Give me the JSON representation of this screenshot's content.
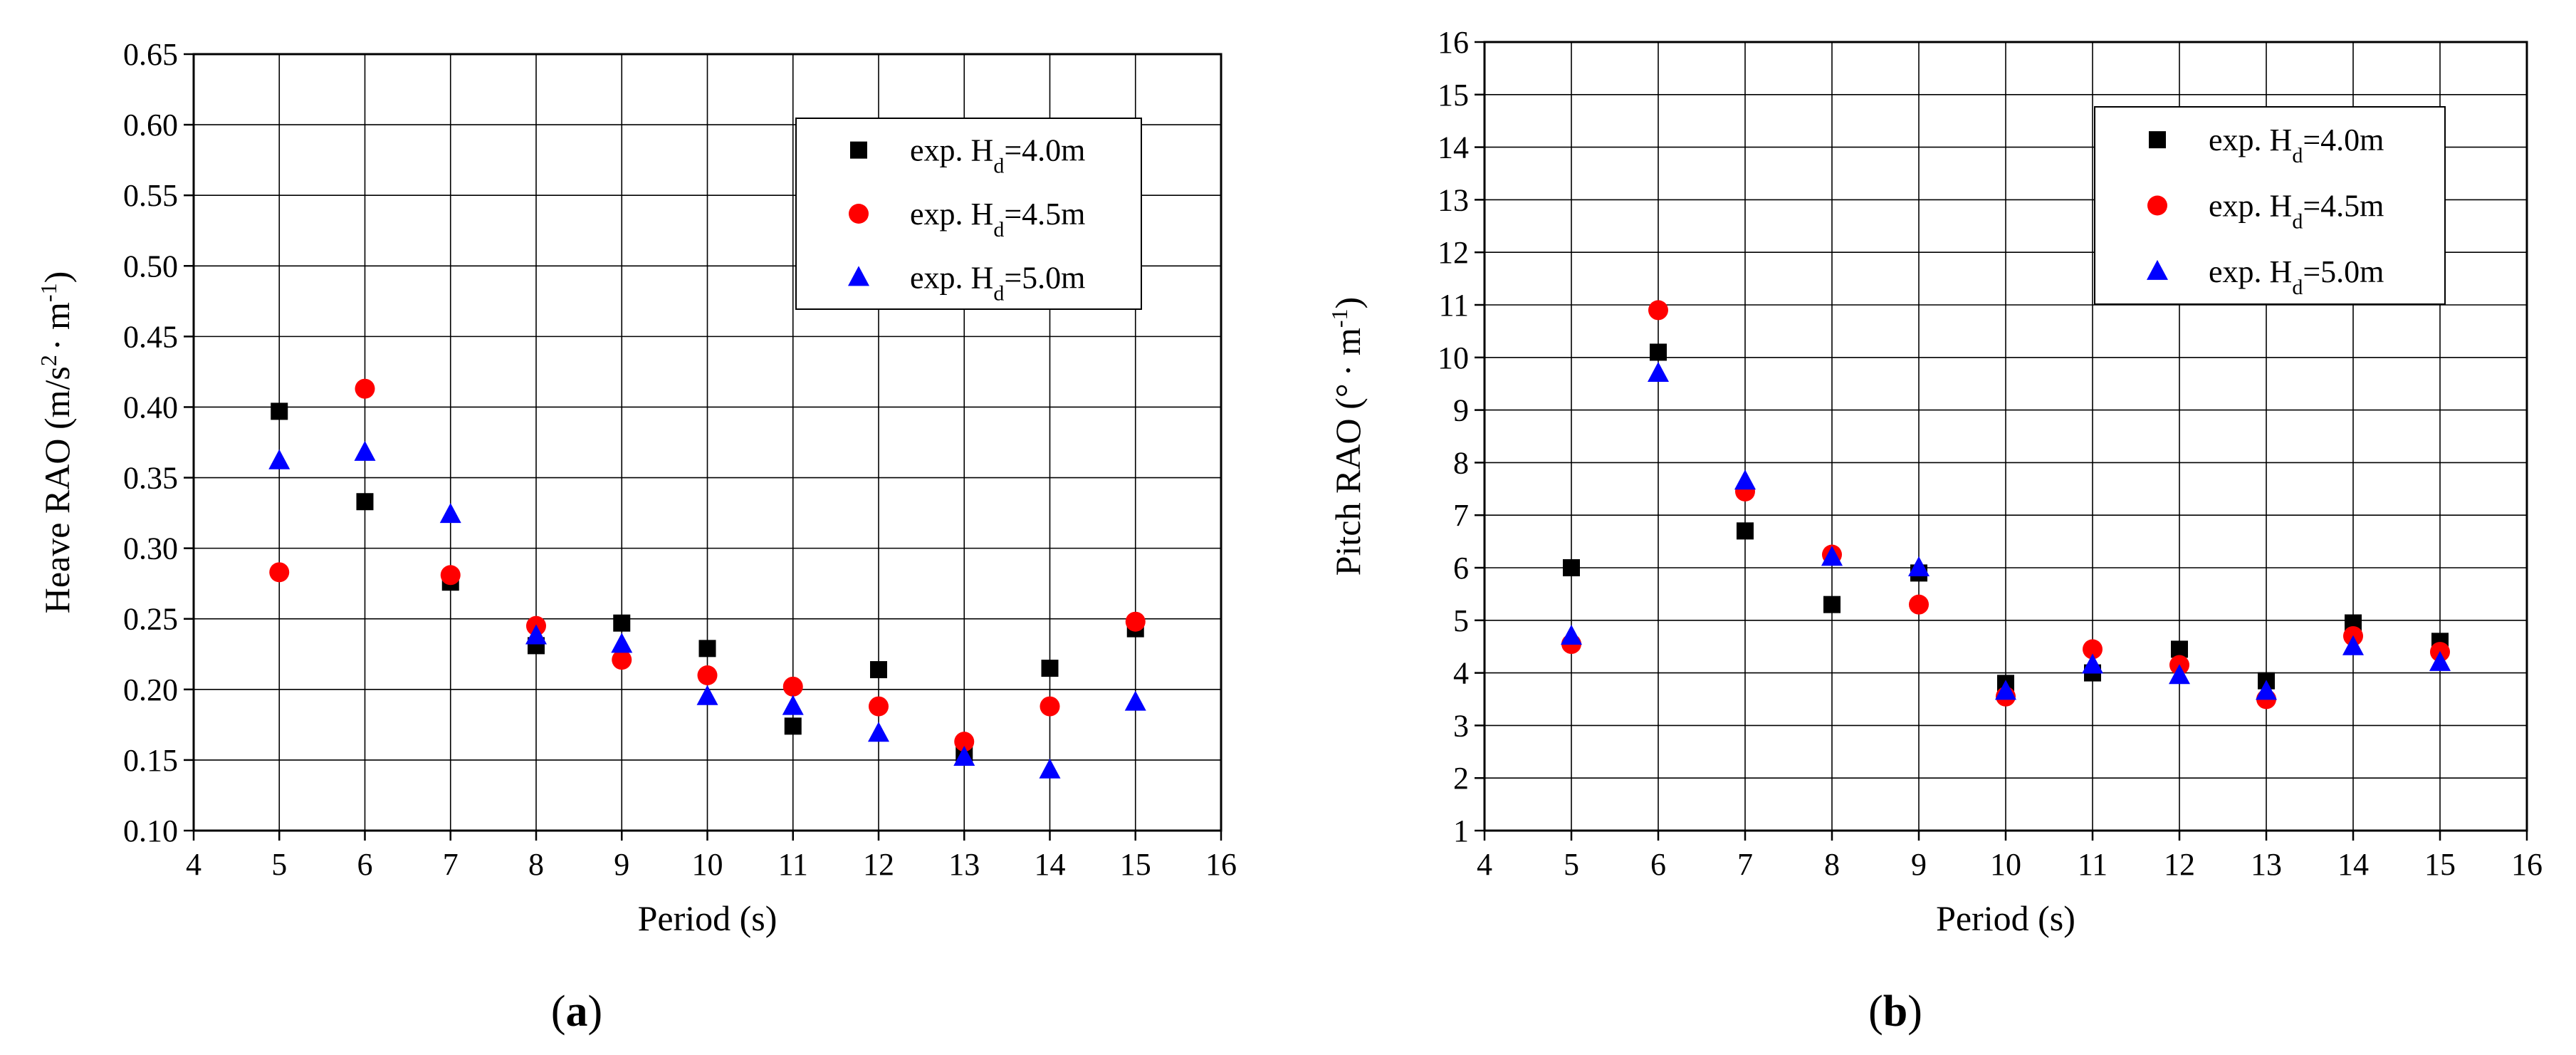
{
  "panels": [
    {
      "label_open": "(",
      "label_letter": "a",
      "label_close": ")"
    },
    {
      "label_open": "(",
      "label_letter": "b",
      "label_close": ")"
    }
  ],
  "chart_data": [
    {
      "type": "scatter",
      "xlabel": "Period (s)",
      "ylabel": {
        "main": "Heave RAO (m/s",
        "sup1": "2",
        "mid": "· m",
        "sup2": "-1",
        "end": ")"
      },
      "xlim": [
        4,
        16
      ],
      "ylim": [
        0.1,
        0.65
      ],
      "x_ticks": [
        "4",
        "5",
        "6",
        "7",
        "8",
        "9",
        "10",
        "11",
        "12",
        "13",
        "14",
        "15",
        "16"
      ],
      "y_ticks": [
        "0.10",
        "0.15",
        "0.20",
        "0.25",
        "0.30",
        "0.35",
        "0.40",
        "0.45",
        "0.50",
        "0.55",
        "0.60",
        "0.65"
      ],
      "grid": true,
      "legend_position": "top-right",
      "x": [
        5,
        6,
        7,
        8,
        9,
        10,
        11,
        12,
        13,
        14,
        15
      ],
      "series": [
        {
          "name": {
            "pre": "exp. H",
            "sub": "d",
            "post": "=4.0m"
          },
          "marker": "square",
          "color": "#000000",
          "values": [
            0.397,
            0.333,
            0.276,
            0.231,
            0.247,
            0.229,
            0.174,
            0.214,
            0.155,
            0.215,
            0.243
          ]
        },
        {
          "name": {
            "pre": "exp. H",
            "sub": "d",
            "post": "=4.5m"
          },
          "marker": "circle",
          "color": "#ff0000",
          "values": [
            0.283,
            0.413,
            0.281,
            0.245,
            0.221,
            0.21,
            0.202,
            0.188,
            0.163,
            0.188,
            0.248
          ]
        },
        {
          "name": {
            "pre": "exp. H",
            "sub": "d",
            "post": "=5.0m"
          },
          "marker": "triangle",
          "color": "#0000ff",
          "values": [
            0.362,
            0.368,
            0.324,
            0.238,
            0.232,
            0.195,
            0.188,
            0.169,
            0.152,
            0.143,
            0.191
          ]
        }
      ]
    },
    {
      "type": "scatter",
      "xlabel": "Period (s)",
      "ylabel": {
        "main": "Pitch RAO (°",
        "mid": "· m",
        "sup2": "-1",
        "end": ")"
      },
      "xlim": [
        4,
        16
      ],
      "ylim": [
        1,
        16
      ],
      "x_ticks": [
        "4",
        "5",
        "6",
        "7",
        "8",
        "9",
        "10",
        "11",
        "12",
        "13",
        "14",
        "15",
        "16"
      ],
      "y_ticks": [
        "1",
        "2",
        "3",
        "4",
        "5",
        "6",
        "7",
        "8",
        "9",
        "10",
        "11",
        "12",
        "13",
        "14",
        "15",
        "16"
      ],
      "grid": true,
      "legend_position": "top-right",
      "x": [
        5,
        6,
        7,
        8,
        9,
        10,
        11,
        12,
        13,
        14,
        15
      ],
      "series": [
        {
          "name": {
            "pre": "exp. H",
            "sub": "d",
            "post": "=4.0m"
          },
          "marker": "square",
          "color": "#000000",
          "values": [
            6.0,
            10.1,
            6.7,
            5.3,
            5.9,
            3.8,
            4.0,
            4.45,
            3.85,
            4.95,
            4.6
          ]
        },
        {
          "name": {
            "pre": "exp. H",
            "sub": "d",
            "post": "=4.5m"
          },
          "marker": "circle",
          "color": "#ff0000",
          "values": [
            4.55,
            10.9,
            7.45,
            6.25,
            5.3,
            3.55,
            4.45,
            4.15,
            3.5,
            4.7,
            4.4
          ]
        },
        {
          "name": {
            "pre": "exp. H",
            "sub": "d",
            "post": "=5.0m"
          },
          "marker": "triangle",
          "color": "#0000ff",
          "values": [
            4.7,
            9.7,
            7.65,
            6.2,
            6.0,
            3.65,
            4.15,
            3.95,
            3.65,
            4.5,
            4.2
          ]
        }
      ]
    }
  ]
}
